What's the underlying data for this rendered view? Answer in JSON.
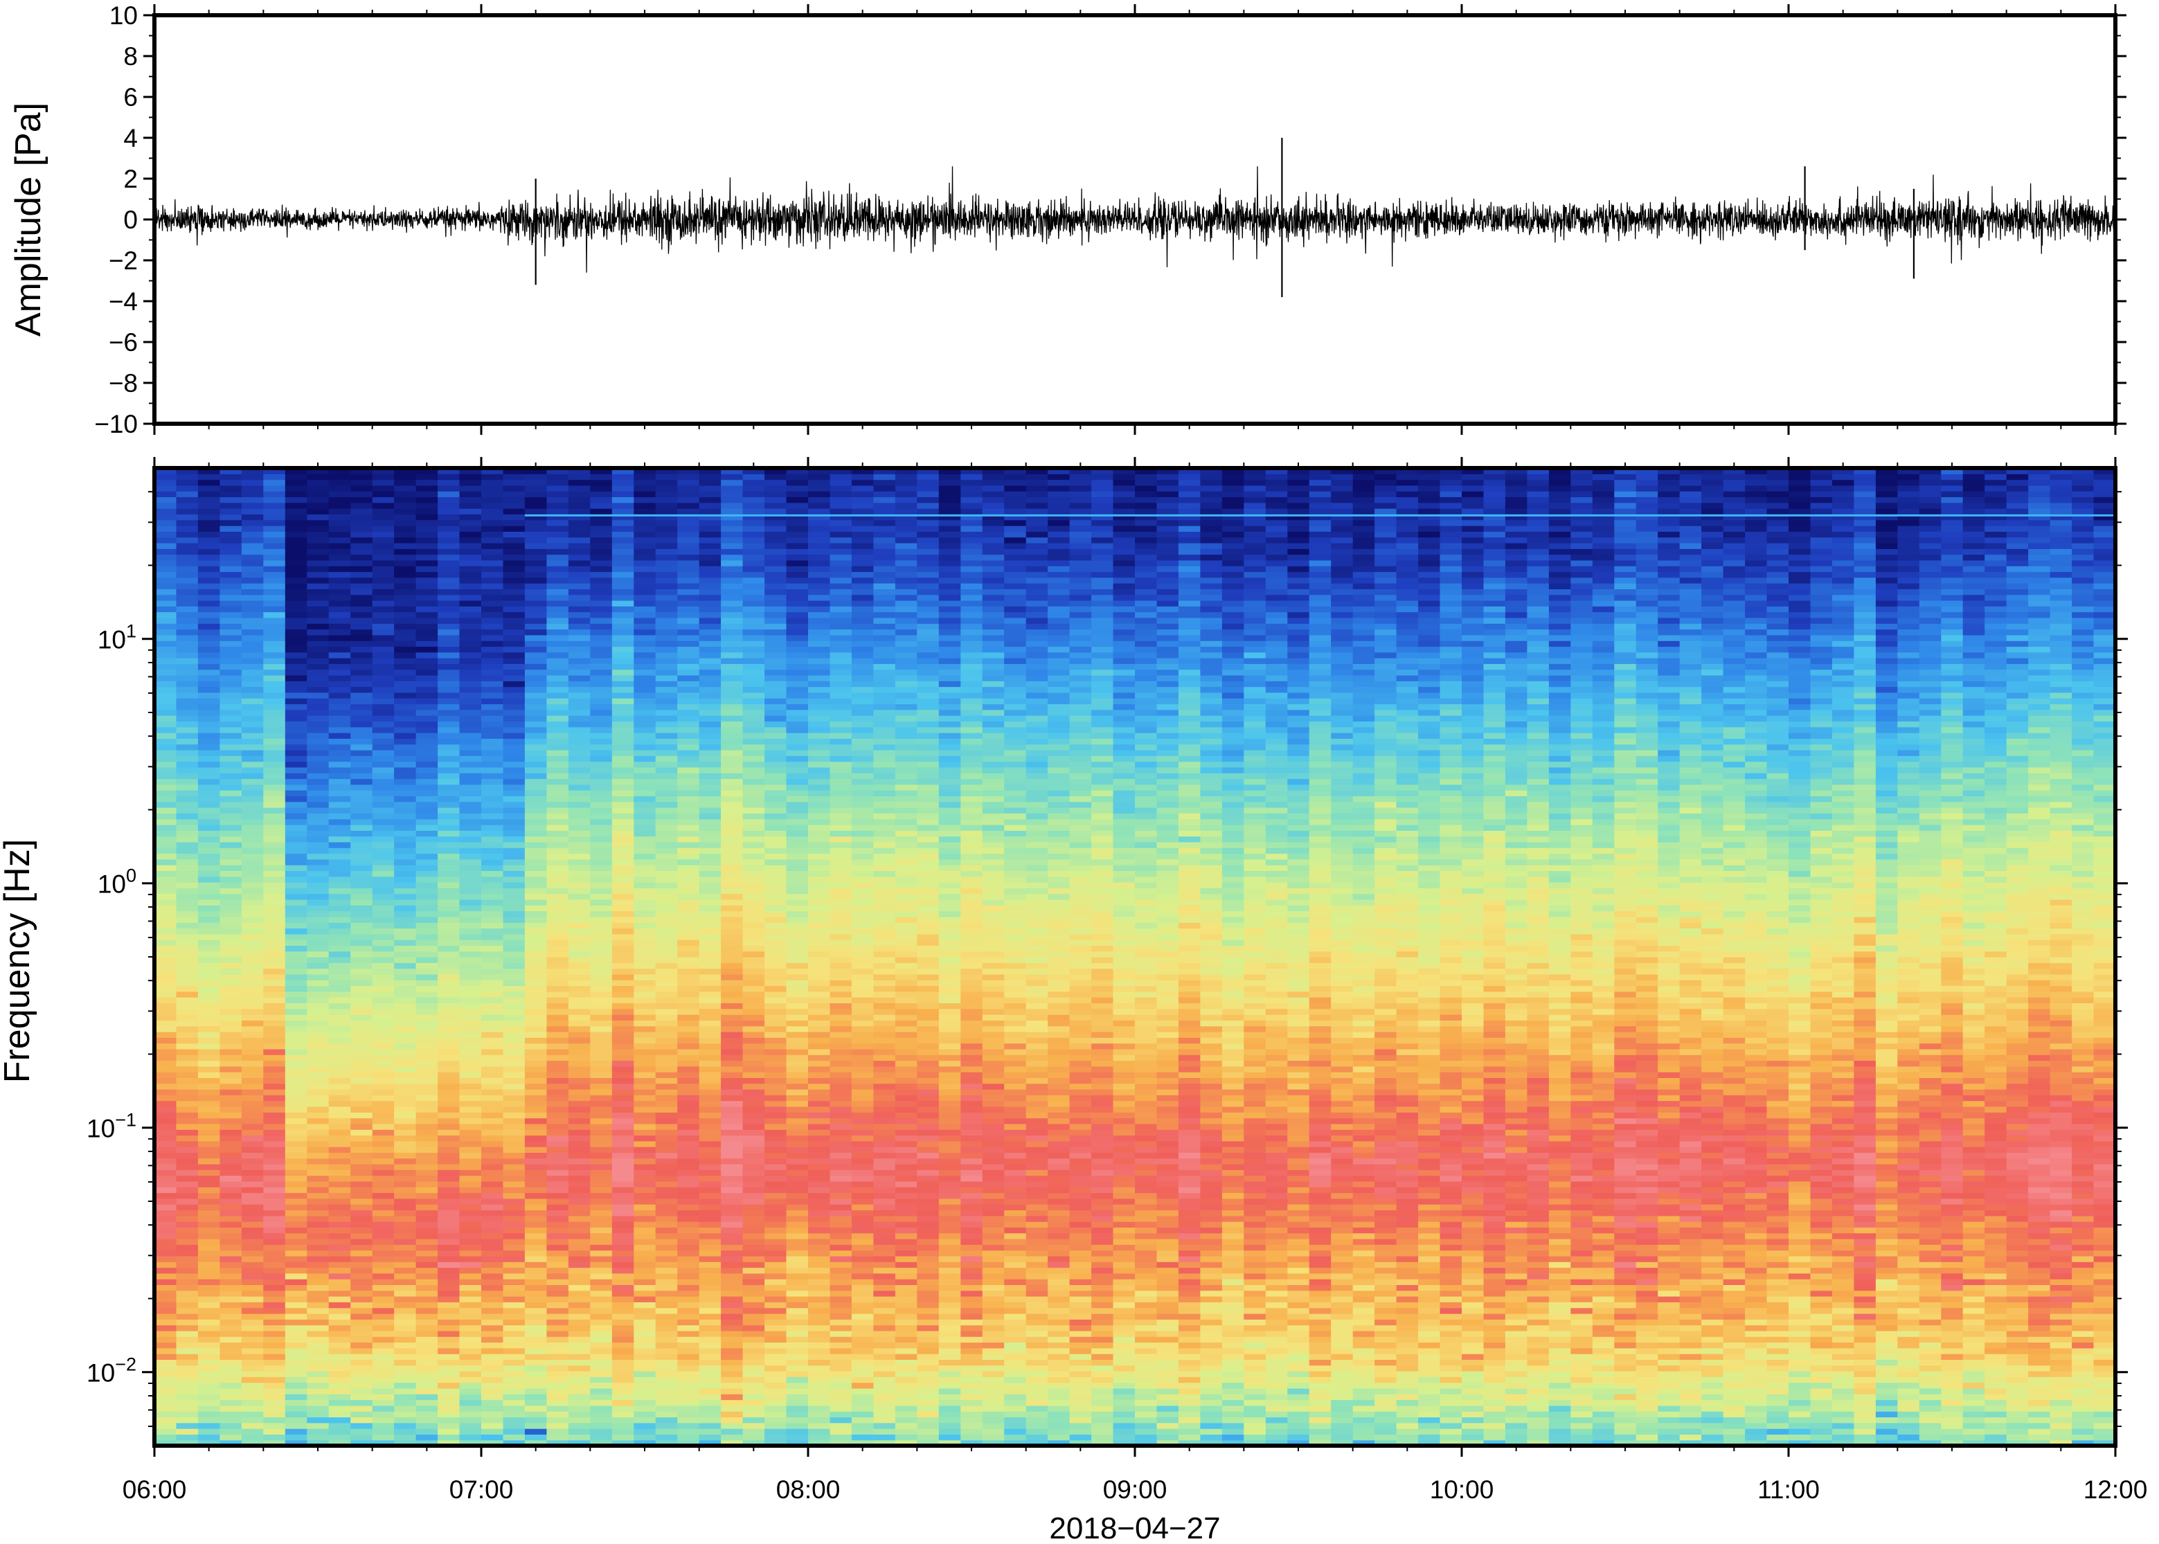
{
  "chart_data": [
    {
      "type": "line",
      "panel": "waveform",
      "ylabel": "Amplitude [Pa]",
      "xlabel": "",
      "xlim": [
        "06:00",
        "12:00"
      ],
      "ylim": [
        -10,
        10
      ],
      "y_ticks": [
        -10,
        -8,
        -6,
        -4,
        -2,
        0,
        2,
        4,
        6,
        8,
        10
      ],
      "y_tick_labels": [
        "−10",
        "−8",
        "−6",
        "−4",
        "−2",
        "0",
        "2",
        "4",
        "6",
        "8",
        "10"
      ],
      "noise_envelope": [
        {
          "t": "06:00",
          "amp": 0.6
        },
        {
          "t": "06:30",
          "amp": 0.4
        },
        {
          "t": "07:00",
          "amp": 0.5
        },
        {
          "t": "07:10",
          "amp": 0.9
        },
        {
          "t": "07:30",
          "amp": 1.0
        },
        {
          "t": "08:00",
          "amp": 1.1
        },
        {
          "t": "08:30",
          "amp": 0.9
        },
        {
          "t": "09:00",
          "amp": 0.8
        },
        {
          "t": "09:30",
          "amp": 0.9
        },
        {
          "t": "10:00",
          "amp": 0.7
        },
        {
          "t": "10:30",
          "amp": 0.7
        },
        {
          "t": "11:00",
          "amp": 0.8
        },
        {
          "t": "11:30",
          "amp": 0.9
        },
        {
          "t": "12:00",
          "amp": 0.9
        }
      ],
      "spikes": [
        {
          "t": "07:10",
          "max": 2.0,
          "min": -3.2
        },
        {
          "t": "09:27",
          "max": 4.0,
          "min": -3.8
        },
        {
          "t": "11:03",
          "max": 2.6,
          "min": -1.5
        },
        {
          "t": "11:23",
          "max": 1.5,
          "min": -2.9
        }
      ]
    },
    {
      "type": "heatmap",
      "panel": "spectrogram",
      "ylabel": "Frequency [Hz]",
      "xlabel": "2018−04−27",
      "y_scale": "log",
      "xlim": [
        "06:00",
        "12:00"
      ],
      "ylim": [
        0.005,
        50
      ],
      "x_ticks": [
        "06:00",
        "07:00",
        "08:00",
        "09:00",
        "10:00",
        "11:00",
        "12:00"
      ],
      "y_ticks": [
        0.01,
        0.1,
        1,
        10
      ],
      "y_tick_labels": [
        {
          "base": "10",
          "exp": "−2"
        },
        {
          "base": "10",
          "exp": "−1"
        },
        {
          "base": "10",
          "exp": "0"
        },
        {
          "base": "10",
          "exp": "1"
        }
      ],
      "colormap": [
        "#0b0f6b",
        "#1f3fbf",
        "#2f86e8",
        "#4cc4ee",
        "#8fe3b8",
        "#d7f08e",
        "#f6e27a",
        "#f8b04e",
        "#f0605a",
        "#f58a8e"
      ],
      "spectral_line_hz": 32,
      "column_minutes": 4,
      "level_profiles": [
        {
          "from": "06:00",
          "to": "06:25",
          "f_hi_cut": 30,
          "f_mid": 0.8,
          "f_peak": 0.06,
          "f_low_rise": 0.012
        },
        {
          "from": "06:25",
          "to": "07:08",
          "f_hi_cut": 8,
          "f_mid": 0.5,
          "f_peak": 0.04,
          "f_low_rise": 0.012
        },
        {
          "from": "07:08",
          "to": "12:00",
          "f_hi_cut": 22,
          "f_mid": 1.5,
          "f_peak": 0.07,
          "f_low_rise": 0.012
        }
      ]
    }
  ]
}
